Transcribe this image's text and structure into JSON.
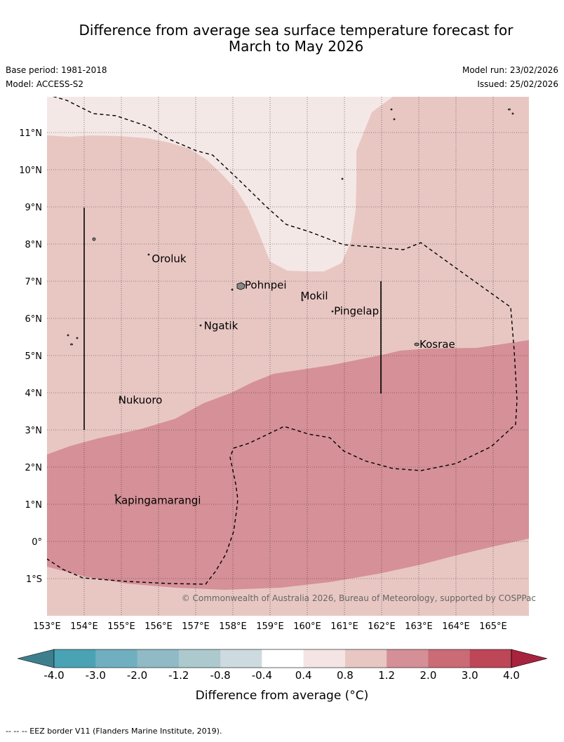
{
  "title_line1": "Difference from average sea surface temperature forecast for",
  "title_line2": "March to May 2026",
  "base_period": "Base period: 1981-2018",
  "model": "Model: ACCESS-S2",
  "model_run": "Model run: 23/02/2026",
  "issued": "Issued: 25/02/2026",
  "copyright": "© Commonwealth of Australia 2026, Bureau of Meteorology, supported by COSPPac",
  "footer_note": "--  --  -- EEZ border V11 (Flanders Marine Institute, 2019).",
  "map": {
    "lon_labels": [
      "153°E",
      "154°E",
      "155°E",
      "156°E",
      "157°E",
      "158°E",
      "159°E",
      "160°E",
      "161°E",
      "162°E",
      "163°E",
      "164°E",
      "165°E"
    ],
    "lat_labels": [
      "11°N",
      "10°N",
      "9°N",
      "8°N",
      "7°N",
      "6°N",
      "5°N",
      "4°N",
      "3°N",
      "2°N",
      "1°N",
      "0°",
      "1°S"
    ],
    "places": [
      {
        "name": "Oroluk",
        "lon": 155.8,
        "lat": 7.6
      },
      {
        "name": "Pohnpei",
        "lon": 158.3,
        "lat": 6.9
      },
      {
        "name": "Mokil",
        "lon": 159.8,
        "lat": 6.6
      },
      {
        "name": "Pingelap",
        "lon": 160.7,
        "lat": 6.2
      },
      {
        "name": "Ngatik",
        "lon": 157.2,
        "lat": 5.8
      },
      {
        "name": "Kosrae",
        "lon": 163.0,
        "lat": 5.3
      },
      {
        "name": "Nukuoro",
        "lon": 154.9,
        "lat": 3.8
      },
      {
        "name": "Kapingamarangi",
        "lon": 154.8,
        "lat": 1.1
      }
    ]
  },
  "colorbar": {
    "title": "Difference from average (°C)",
    "tick_labels": [
      "-4.0",
      "-3.0",
      "-2.0",
      "-1.2",
      "-0.8",
      "-0.4",
      "0.4",
      "0.8",
      "1.2",
      "2.0",
      "3.0",
      "4.0"
    ],
    "colors": [
      "#3e7f8e",
      "#4aa3b4",
      "#6fafc0",
      "#8fbac6",
      "#acc9cd",
      "#cddadf",
      "#ffffff",
      "#f4e5e4",
      "#e8c7c3",
      "#d58f96",
      "#ca6b76",
      "#bd4657",
      "#a8233d"
    ]
  }
}
